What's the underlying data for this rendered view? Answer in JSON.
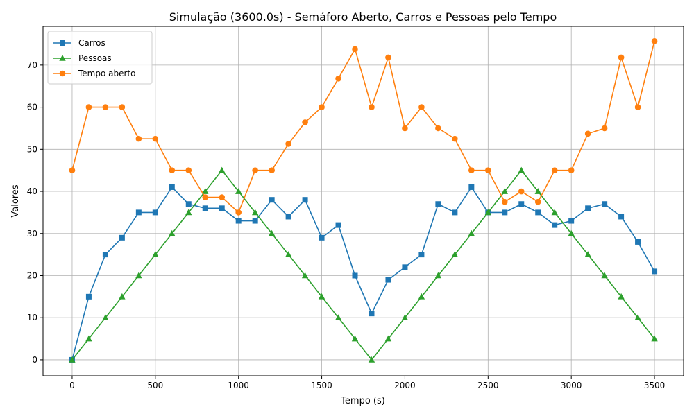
{
  "chart_data": {
    "type": "line",
    "title": "Simulação (3600.0s) - Semáforo Aberto, Carros e Pessoas pelo Tempo",
    "xlabel": "Tempo (s)",
    "ylabel": "Valores",
    "xlim": [
      -175,
      3675
    ],
    "ylim": [
      -3.8,
      79.2
    ],
    "xticks": [
      0,
      500,
      1000,
      1500,
      2000,
      2500,
      3000,
      3500
    ],
    "yticks": [
      0,
      10,
      20,
      30,
      40,
      50,
      60,
      70
    ],
    "grid": true,
    "legend_position": "top-left",
    "x": [
      0,
      100,
      200,
      300,
      400,
      500,
      600,
      700,
      800,
      900,
      1000,
      1100,
      1200,
      1300,
      1400,
      1500,
      1600,
      1700,
      1800,
      1900,
      2000,
      2100,
      2200,
      2300,
      2400,
      2500,
      2600,
      2700,
      2800,
      2900,
      3000,
      3100,
      3200,
      3300,
      3400,
      3500
    ],
    "series": [
      {
        "name": "Carros",
        "color": "#1f77b4",
        "marker": "square",
        "values": [
          0,
          15,
          25,
          29,
          35,
          35,
          41,
          37,
          36,
          36,
          33,
          33,
          38,
          34,
          38,
          29,
          32,
          20,
          11,
          19,
          22,
          25,
          37,
          35,
          41,
          35,
          35,
          37,
          35,
          32,
          33,
          36,
          37,
          34,
          28,
          21
        ]
      },
      {
        "name": "Pessoas",
        "color": "#2ca02c",
        "marker": "triangle",
        "values": [
          0,
          5,
          10,
          15,
          20,
          25,
          30,
          35,
          40,
          45,
          40,
          35,
          30,
          25,
          20,
          15,
          10,
          5,
          0,
          5,
          10,
          15,
          20,
          25,
          30,
          35,
          40,
          45,
          40,
          35,
          30,
          25,
          20,
          15,
          10,
          5
        ]
      },
      {
        "name": "Tempo aberto",
        "color": "#ff7f0e",
        "marker": "circle",
        "values": [
          45,
          60,
          60,
          60,
          52.5,
          52.5,
          45,
          45,
          38.6,
          38.6,
          35,
          45,
          45,
          51.3,
          56.4,
          60,
          66.8,
          73.8,
          60,
          71.8,
          55,
          60,
          55,
          52.5,
          45,
          45,
          37.5,
          40,
          37.5,
          45,
          45,
          53.7,
          55,
          71.8,
          60,
          75.7
        ]
      }
    ]
  }
}
